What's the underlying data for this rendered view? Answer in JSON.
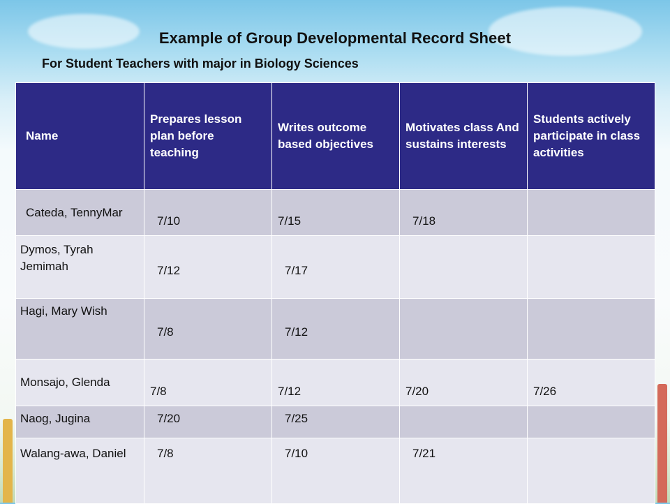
{
  "title": "Example of Group Developmental Record Sheet",
  "subtitle": "For Student Teachers with major in Biology Sciences",
  "table": {
    "headers": [
      "Name",
      "Prepares lesson plan before teaching",
      "Writes outcome based objectives",
      "Motivates class And sustains interests",
      "Students actively participate in class activities"
    ],
    "rows": [
      {
        "name": "Cateda, TennyMar",
        "cells": [
          "7/10",
          "7/15",
          "7/18",
          ""
        ]
      },
      {
        "name": "Dymos, Tyrah Jemimah",
        "cells": [
          "7/12",
          "7/17",
          "",
          ""
        ]
      },
      {
        "name": "Hagi, Mary Wish",
        "cells": [
          "7/8",
          "7/12",
          "",
          ""
        ]
      },
      {
        "name": "Monsajo, Glenda",
        "cells": [
          "7/8",
          "7/12",
          "7/20",
          "7/26"
        ]
      },
      {
        "name": "Naog, Jugina",
        "cells": [
          "7/20",
          "7/25",
          "",
          ""
        ]
      },
      {
        "name": "Walang-awa, Daniel",
        "cells": [
          "7/8",
          "7/10",
          "7/21",
          ""
        ]
      }
    ]
  },
  "colors": {
    "header_bg": "#2d2a86",
    "row_odd": "#cbcad9",
    "row_even": "#e6e6ef"
  }
}
